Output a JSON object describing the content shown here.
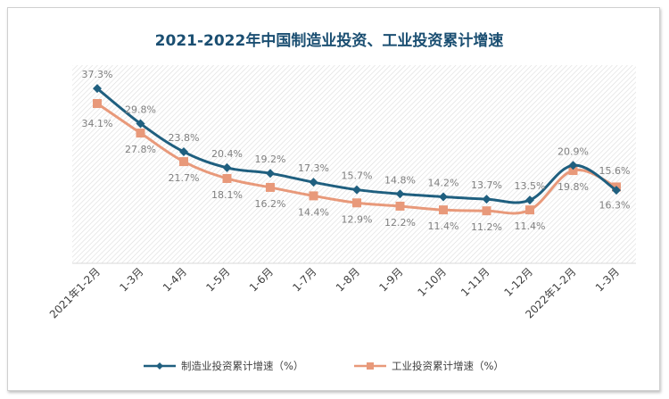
{
  "chart_data": {
    "type": "line",
    "title": "2021-2022年中国制造业投资、工业投资累计增速",
    "categories": [
      "2021年1-2月",
      "1-3月",
      "1-4月",
      "1-5月",
      "1-6月",
      "1-7月",
      "1-8月",
      "1-9月",
      "1-10月",
      "1-11月",
      "1-12月",
      "2022年1-2月",
      "1-3月"
    ],
    "series": [
      {
        "name": "制造业投资累计增速（%）",
        "color": "#1f5f7f",
        "marker": "diamond",
        "values": [
          37.3,
          29.8,
          23.8,
          20.4,
          19.2,
          17.3,
          15.7,
          14.8,
          14.2,
          13.7,
          13.5,
          20.9,
          15.6
        ],
        "labels": [
          "37.3%",
          "29.8%",
          "23.8%",
          "20.4%",
          "19.2%",
          "17.3%",
          "15.7%",
          "14.8%",
          "14.2%",
          "13.7%",
          "13.5%",
          "20.9%",
          "15.6%"
        ]
      },
      {
        "name": "工业投资累计增速（%）",
        "color": "#e8997a",
        "marker": "square",
        "values": [
          34.1,
          27.8,
          21.7,
          18.1,
          16.2,
          14.4,
          12.9,
          12.2,
          11.4,
          11.2,
          11.4,
          19.8,
          16.3
        ],
        "labels": [
          "34.1%",
          "27.8%",
          "21.7%",
          "18.1%",
          "16.2%",
          "14.4%",
          "12.9%",
          "12.2%",
          "11.4%",
          "11.2%",
          "11.4%",
          "19.8%",
          "16.3%"
        ]
      }
    ],
    "ylim": [
      0,
      40
    ],
    "grid": false,
    "legend": "bottom",
    "plot_background": "hatched-light-gray"
  }
}
